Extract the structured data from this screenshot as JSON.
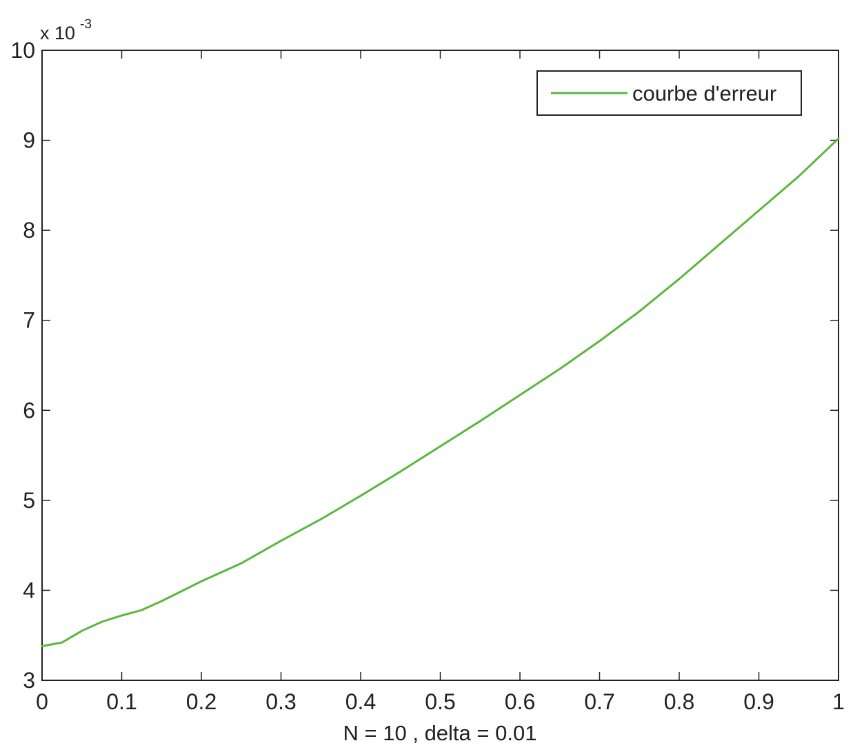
{
  "chart_data": {
    "type": "line",
    "title": "",
    "xlabel": "N = 10 , delta = 0.01",
    "ylabel": "",
    "y_exponent_label": {
      "base": "x 10",
      "power": "-3"
    },
    "xlim": [
      0,
      1
    ],
    "ylim": [
      3,
      10
    ],
    "xticks": [
      0,
      0.1,
      0.2,
      0.3,
      0.4,
      0.5,
      0.6,
      0.7,
      0.8,
      0.9,
      1
    ],
    "xtick_labels": [
      "0",
      "0.1",
      "0.2",
      "0.3",
      "0.4",
      "0.5",
      "0.6",
      "0.7",
      "0.8",
      "0.9",
      "1"
    ],
    "yticks": [
      3,
      4,
      5,
      6,
      7,
      8,
      9,
      10
    ],
    "ytick_labels": [
      "3",
      "4",
      "5",
      "6",
      "7",
      "8",
      "9",
      "10"
    ],
    "grid": false,
    "legend_position": "top-right",
    "series": [
      {
        "name": "courbe d'erreur",
        "color": "#59b83c",
        "x": [
          0,
          0.025,
          0.05,
          0.075,
          0.1,
          0.125,
          0.15,
          0.2,
          0.25,
          0.3,
          0.35,
          0.4,
          0.45,
          0.5,
          0.55,
          0.6,
          0.65,
          0.7,
          0.75,
          0.8,
          0.85,
          0.9,
          0.95,
          1
        ],
        "y": [
          3.38,
          3.42,
          3.55,
          3.65,
          3.72,
          3.78,
          3.88,
          4.1,
          4.3,
          4.55,
          4.79,
          5.05,
          5.32,
          5.6,
          5.88,
          6.17,
          6.46,
          6.77,
          7.1,
          7.46,
          7.84,
          8.22,
          8.6,
          9.02
        ]
      }
    ]
  }
}
